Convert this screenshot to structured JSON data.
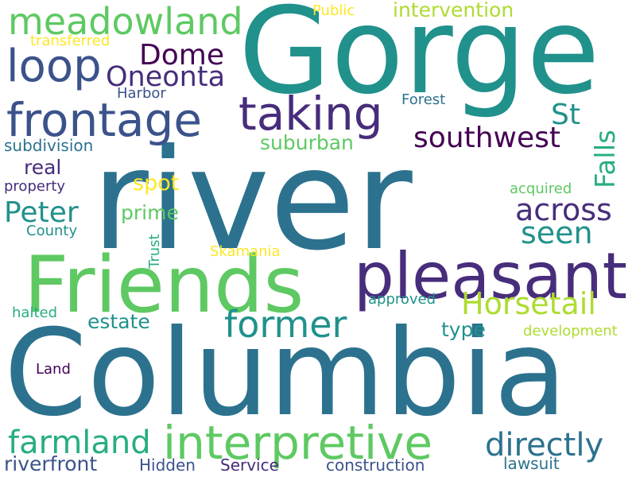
{
  "palette": {
    "dark_purple": "#440154",
    "purple": "#472d7b",
    "indigo": "#3b528b",
    "blue_teal": "#2c728e",
    "teal": "#21918c",
    "green_teal": "#28ae80",
    "green": "#5ec962",
    "yellow_green": "#addc30",
    "yellow": "#fde725"
  },
  "words": {
    "gorge": "Gorge",
    "river": "river",
    "columbia": "Columbia",
    "friends": "Friends",
    "pleasant": "pleasant",
    "meadowland": "meadowland",
    "loop": "loop",
    "frontage": "frontage",
    "taking": "taking",
    "dome": "Dome",
    "oneonta": "Oneonta",
    "interpretive": "interpretive",
    "farmland": "farmland",
    "directly": "directly",
    "former": "former",
    "horsetail": "Horsetail",
    "across": "across",
    "seen": "seen",
    "southwest": "southwest",
    "falls": "Falls",
    "st": "St",
    "suburban": "suburban",
    "intervention": "intervention",
    "public": "Public",
    "transferred": "transferred",
    "harbor": "Harbor",
    "forest": "Forest",
    "subdivision": "subdivision",
    "real": "real",
    "property": "property",
    "spot": "spot",
    "acquired": "acquired",
    "peter": "Peter",
    "prime": "prime",
    "county": "County",
    "trust": "Trust",
    "skamania": "Skamania",
    "estate": "estate",
    "type": "type",
    "development": "development",
    "approved": "approved",
    "halted": "halted",
    "land": "Land",
    "riverfront": "riverfront",
    "hidden": "Hidden",
    "service": "Service",
    "construction": "construction",
    "lawsuit": "lawsuit"
  }
}
